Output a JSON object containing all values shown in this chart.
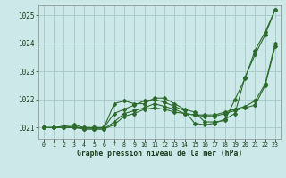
{
  "background_color": "#cce8e8",
  "grid_color": "#aacccc",
  "line_color": "#2d6b2d",
  "xlabel": "Graphe pression niveau de la mer (hPa)",
  "ylim": [
    1020.6,
    1025.35
  ],
  "xlim": [
    -0.5,
    23.5
  ],
  "yticks": [
    1021,
    1022,
    1023,
    1024,
    1025
  ],
  "xticks": [
    0,
    1,
    2,
    3,
    4,
    5,
    6,
    7,
    8,
    9,
    10,
    11,
    12,
    13,
    14,
    15,
    16,
    17,
    18,
    19,
    20,
    21,
    22,
    23
  ],
  "series": [
    [
      1021.0,
      1021.0,
      1021.05,
      1021.1,
      1021.0,
      1021.0,
      1021.0,
      1021.85,
      1021.95,
      1021.85,
      1021.85,
      1022.05,
      1022.05,
      1021.85,
      1021.65,
      1021.55,
      1021.2,
      1021.2,
      1021.25,
      1022.0,
      1022.75,
      1023.75,
      1024.4,
      1025.2
    ],
    [
      1021.0,
      1021.0,
      1021.0,
      1021.0,
      1021.0,
      1021.0,
      1021.0,
      1021.5,
      1021.65,
      1021.8,
      1021.95,
      1022.0,
      1021.9,
      1021.75,
      1021.6,
      1021.15,
      1021.1,
      1021.15,
      1021.3,
      1021.5,
      1022.8,
      1023.6,
      1024.3,
      1025.2
    ],
    [
      1021.0,
      1021.0,
      1021.0,
      1021.0,
      1020.95,
      1020.95,
      1020.95,
      1021.2,
      1021.5,
      1021.6,
      1021.7,
      1021.85,
      1021.75,
      1021.65,
      1021.5,
      1021.45,
      1021.45,
      1021.45,
      1021.55,
      1021.65,
      1021.75,
      1021.95,
      1022.55,
      1024.0
    ],
    [
      1021.0,
      1021.0,
      1021.0,
      1021.05,
      1020.95,
      1020.95,
      1020.95,
      1021.1,
      1021.4,
      1021.5,
      1021.65,
      1021.7,
      1021.65,
      1021.55,
      1021.5,
      1021.45,
      1021.4,
      1021.4,
      1021.5,
      1021.6,
      1021.7,
      1021.8,
      1022.5,
      1023.9
    ]
  ]
}
